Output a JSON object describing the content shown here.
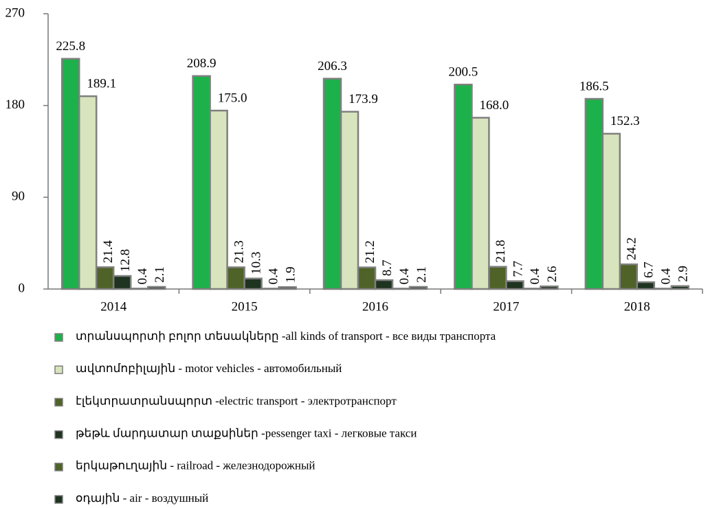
{
  "chart_data": {
    "type": "bar",
    "categories": [
      "2014",
      "2015",
      "2016",
      "2017",
      "2018"
    ],
    "series": [
      {
        "name": "տրանսպորտի բոլոր տեսակները -all kinds of transport - все виды транспорта",
        "color": "#1db14b",
        "values": [
          225.8,
          208.9,
          206.3,
          200.5,
          186.5
        ]
      },
      {
        "name": "ավտոմոբիլային - motor vehicles - автомобильный",
        "color": "#d7e4bd",
        "values": [
          189.1,
          175,
          173.9,
          168,
          152.3
        ],
        "value_labels": [
          "189.1",
          "175.0",
          "173.9",
          "168.0",
          "152.3"
        ]
      },
      {
        "name": "էլեկտրատրանսպորտ -electric transport - электротранспорт",
        "color": "#4f6228",
        "values": [
          21.4,
          21.3,
          21.2,
          21.8,
          24.2
        ]
      },
      {
        "name": "թեթև մարդատար տաքսիներ -pessenger taxi - легковые такси",
        "color": "#1e3320",
        "values": [
          12.8,
          10.3,
          8.7,
          7.7,
          6.7
        ]
      },
      {
        "name": "երկաթուղային - railroad - железнодорожный",
        "color": "#4f6228",
        "values": [
          0.4,
          0.4,
          0.4,
          0.4,
          0.4
        ]
      },
      {
        "name": "օդային - air - воздушный",
        "color": "#1e3320",
        "values": [
          2.1,
          1.9,
          2.1,
          2.6,
          2.9
        ]
      }
    ],
    "ylim": [
      0,
      270
    ],
    "yticks": [
      0,
      90,
      180,
      270
    ]
  }
}
